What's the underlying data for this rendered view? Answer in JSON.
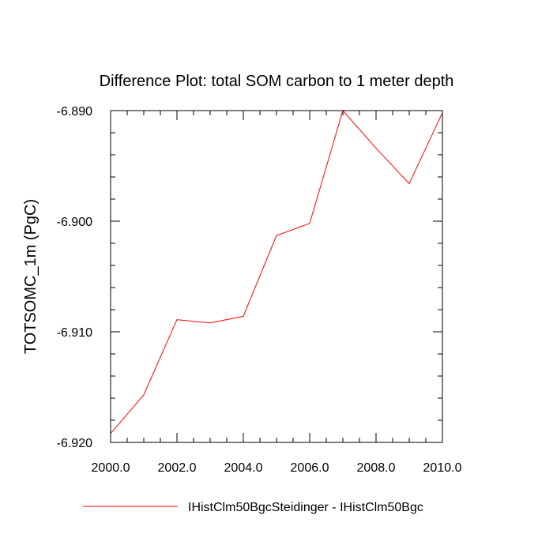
{
  "chart_data": {
    "type": "line",
    "title": "Difference Plot: total SOM carbon to 1 meter depth",
    "xlabel": "",
    "ylabel": "TOTSOMC_1m  (PgC)",
    "xlim": [
      2000,
      2010
    ],
    "ylim": [
      -6.92,
      -6.89
    ],
    "xticks": [
      2000,
      2002,
      2004,
      2006,
      2008,
      2010
    ],
    "xtick_labels": [
      "2000.0",
      "2002.0",
      "2004.0",
      "2006.0",
      "2008.0",
      "2010.0"
    ],
    "yticks": [
      -6.92,
      -6.91,
      -6.9,
      -6.89
    ],
    "ytick_labels": [
      "-6.920",
      "-6.910",
      "-6.900",
      "-6.890"
    ],
    "grid": false,
    "legend_position": "bottom",
    "series": [
      {
        "name": "IHistClm50BgcSteidinger - IHistClm50Bgc",
        "color": "#ff0000",
        "x": [
          2000,
          2001,
          2002,
          2003,
          2004,
          2005,
          2006,
          2007,
          2008,
          2009,
          2010
        ],
        "y": [
          -6.9192,
          -6.9157,
          -6.9089,
          -6.9092,
          -6.9086,
          -6.9013,
          -6.9002,
          -6.89,
          -6.8934,
          -6.8966,
          -6.8902
        ]
      }
    ]
  }
}
